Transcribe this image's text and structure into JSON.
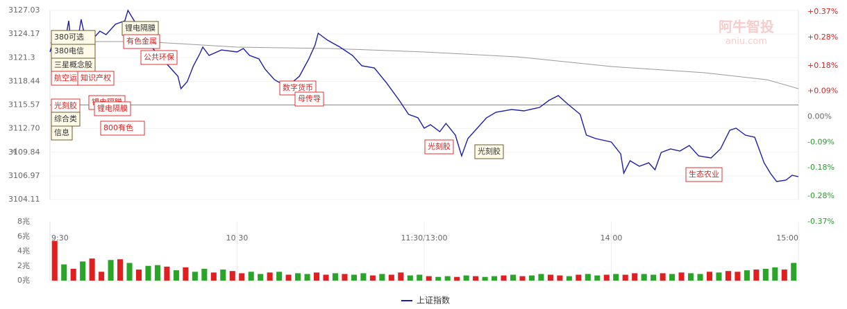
{
  "watermark": {
    "brand": "阿牛智投",
    "site": "aniu.com"
  },
  "chart_data": [
    {
      "type": "line",
      "xlim": [
        0,
        240
      ],
      "xticks": [
        {
          "value": 0,
          "label": "9:30"
        },
        {
          "value": 60,
          "label": "10:30"
        },
        {
          "value": 120,
          "label": "11:30/13:00"
        },
        {
          "value": 180,
          "label": "14:00"
        },
        {
          "value": 240,
          "label": "15:00"
        }
      ],
      "ylim": [
        3104.11,
        3127.03
      ],
      "yticks": [
        3127.03,
        3124.17,
        3121.3,
        {
          "value": 3121.3,
          "label": "3121.30"
        },
        3118.44,
        3115.57,
        {
          "value": 3112.7,
          "label": "3112.70"
        },
        3109.84,
        3106.97,
        3104.11
      ],
      "y2lim": [
        -0.37,
        0.37
      ],
      "y2ticks": [
        {
          "value": 0.37,
          "label": "+0.37%"
        },
        {
          "value": 0.28,
          "label": "+0.28%"
        },
        {
          "value": 0.18,
          "label": "+0.18%"
        },
        {
          "value": 0.09,
          "label": "+0.09%"
        },
        {
          "value": 0,
          "label": "0.00%"
        },
        {
          "value": -0.09,
          "label": "-0.09%"
        },
        {
          "value": -0.18,
          "label": "-0.18%"
        },
        {
          "value": -0.28,
          "label": "-0.28%"
        },
        {
          "value": -0.37,
          "label": "-0.37%"
        }
      ],
      "reference_line": 3115.57,
      "series": [
        {
          "name": "上证指数",
          "color": "#1c1ca8",
          "x": [
            0,
            2,
            3,
            5,
            6,
            7,
            9,
            10,
            12,
            14,
            16,
            18,
            21,
            24,
            25,
            27,
            30,
            33,
            37,
            41,
            42,
            44,
            46,
            48,
            49,
            51,
            55,
            60,
            62,
            64,
            67,
            69,
            72,
            76,
            80,
            83,
            85,
            86,
            89,
            93,
            97,
            100,
            104,
            108,
            112,
            115,
            118,
            120,
            122,
            125,
            127,
            130,
            132,
            134,
            137,
            140,
            143,
            148,
            152,
            157,
            160,
            163,
            166,
            170,
            172,
            175,
            180,
            183,
            184,
            186,
            189,
            192,
            194,
            196,
            199,
            202,
            205,
            208,
            212,
            215,
            218,
            220,
            223,
            226,
            229,
            231,
            233,
            236,
            238,
            240
          ],
          "values": [
            3121.99,
            3124.51,
            3121.99,
            3123.67,
            3125.77,
            3121.99,
            3123.67,
            3125.94,
            3122.41,
            3123.67,
            3124.51,
            3124.09,
            3125.35,
            3125.77,
            3127.03,
            3125.77,
            3123.67,
            3122.41,
            3120.73,
            3119.05,
            3117.54,
            3118.38,
            3120.31,
            3121.74,
            3122.58,
            3121.57,
            3122.24,
            3121.99,
            3122.41,
            3121.57,
            3121.15,
            3119.89,
            3118.63,
            3117.79,
            3119.05,
            3121.15,
            3122.83,
            3124.26,
            3123.42,
            3122.58,
            3121.57,
            3120.31,
            3120.06,
            3118.21,
            3116.12,
            3114.44,
            3114.02,
            3112.76,
            3113.18,
            3112.34,
            3113.34,
            3111.92,
            3109.4,
            3111.5,
            3112.76,
            3114.02,
            3114.69,
            3115.02,
            3114.86,
            3115.28,
            3116.12,
            3116.7,
            3115.7,
            3114.44,
            3111.92,
            3111.5,
            3111.08,
            3109.65,
            3107.3,
            3108.81,
            3108.14,
            3108.56,
            3107.72,
            3109.82,
            3110.24,
            3109.99,
            3110.66,
            3109.4,
            3109.15,
            3110.24,
            3112.51,
            3112.76,
            3111.92,
            3111.66,
            3108.56,
            3107.3,
            3106.29,
            3106.46,
            3107.05,
            3106.88
          ]
        },
        {
          "color": "#999999",
          "x": [
            0,
            15,
            30,
            60,
            90,
            120,
            150,
            180,
            210,
            230,
            240
          ],
          "values": [
            3123.08,
            3123.25,
            3123.25,
            3122.58,
            3122.41,
            3121.99,
            3121.4,
            3120.23,
            3119.47,
            3118.63,
            3117.54
          ]
        }
      ],
      "annotations": [
        {
          "text": "380可选",
          "style": "dark"
        },
        {
          "text": "380电信",
          "style": "dark"
        },
        {
          "text": "三星概念股",
          "style": "dark"
        },
        {
          "text": "航空运输",
          "style": "red"
        },
        {
          "text": "知识产权",
          "style": "red"
        },
        {
          "text": "锂电隔膜",
          "style": "dark"
        },
        {
          "text": "有色金属",
          "style": "red"
        },
        {
          "text": "公共环保",
          "style": "red"
        },
        {
          "text": "光刻胶",
          "style": "red"
        },
        {
          "text": "综合类",
          "style": "dark"
        },
        {
          "text": "信息",
          "style": "dark"
        },
        {
          "text": "锂电隔膜",
          "style": "red"
        },
        {
          "text": "锂电隔膜",
          "style": "red"
        },
        {
          "text": "800有色",
          "style": "red"
        },
        {
          "text": "数字货币",
          "style": "red"
        },
        {
          "text": "母传导",
          "style": "red"
        },
        {
          "text": "光刻胶",
          "style": "red"
        },
        {
          "text": "光刻胶",
          "style": "dark"
        },
        {
          "text": "生态农业",
          "style": "red"
        }
      ]
    },
    {
      "type": "bar",
      "ylim": [
        0,
        8
      ],
      "yticks": [
        {
          "value": 8,
          "label": "8兆"
        },
        {
          "value": 6,
          "label": "6兆"
        },
        {
          "value": 4,
          "label": "4兆"
        },
        {
          "value": 2,
          "label": "2兆"
        },
        {
          "value": 0,
          "label": "0兆"
        }
      ],
      "up_color": "#e02020",
      "down_color": "#2aa52a",
      "values": [
        5.4,
        2.2,
        1.6,
        2.6,
        3.0,
        1.2,
        2.8,
        2.9,
        2.4,
        1.5,
        2.0,
        2.1,
        1.9,
        1.4,
        1.8,
        1.2,
        1.6,
        1.1,
        1.5,
        1.3,
        1.0,
        1.2,
        0.9,
        1.1,
        1.2,
        0.8,
        1.0,
        0.9,
        1.1,
        0.8,
        1.0,
        0.9,
        0.8,
        1.0,
        0.7,
        0.9,
        0.8,
        1.1,
        0.7,
        0.8,
        0.6,
        0.5,
        0.6,
        0.5,
        0.7,
        0.6,
        0.5,
        0.6,
        0.7,
        0.8,
        0.6,
        0.7,
        0.9,
        0.8,
        0.7,
        0.6,
        0.8,
        0.9,
        0.7,
        0.8,
        0.9,
        0.8,
        1.0,
        0.9,
        0.8,
        1.0,
        0.9,
        1.1,
        1.0,
        0.9,
        1.2,
        1.1,
        1.3,
        1.2,
        1.4,
        1.5,
        1.6,
        1.8,
        1.5,
        2.4
      ],
      "up": [
        true,
        false,
        true,
        false,
        true,
        true,
        false,
        true,
        false,
        true,
        false,
        false,
        true,
        false,
        true,
        false,
        false,
        true,
        false,
        true,
        true,
        false,
        false,
        true,
        false,
        true,
        false,
        false,
        true,
        true,
        false,
        true,
        false,
        false,
        true,
        false,
        true,
        true,
        false,
        false,
        true,
        false,
        false,
        true,
        false,
        true,
        false,
        false,
        true,
        false,
        true,
        false,
        false,
        true,
        true,
        false,
        true,
        false,
        false,
        true,
        false,
        true,
        true,
        false,
        false,
        true,
        false,
        true,
        false,
        false,
        true,
        false,
        true,
        true,
        false,
        true,
        false,
        false,
        true,
        false
      ]
    }
  ]
}
